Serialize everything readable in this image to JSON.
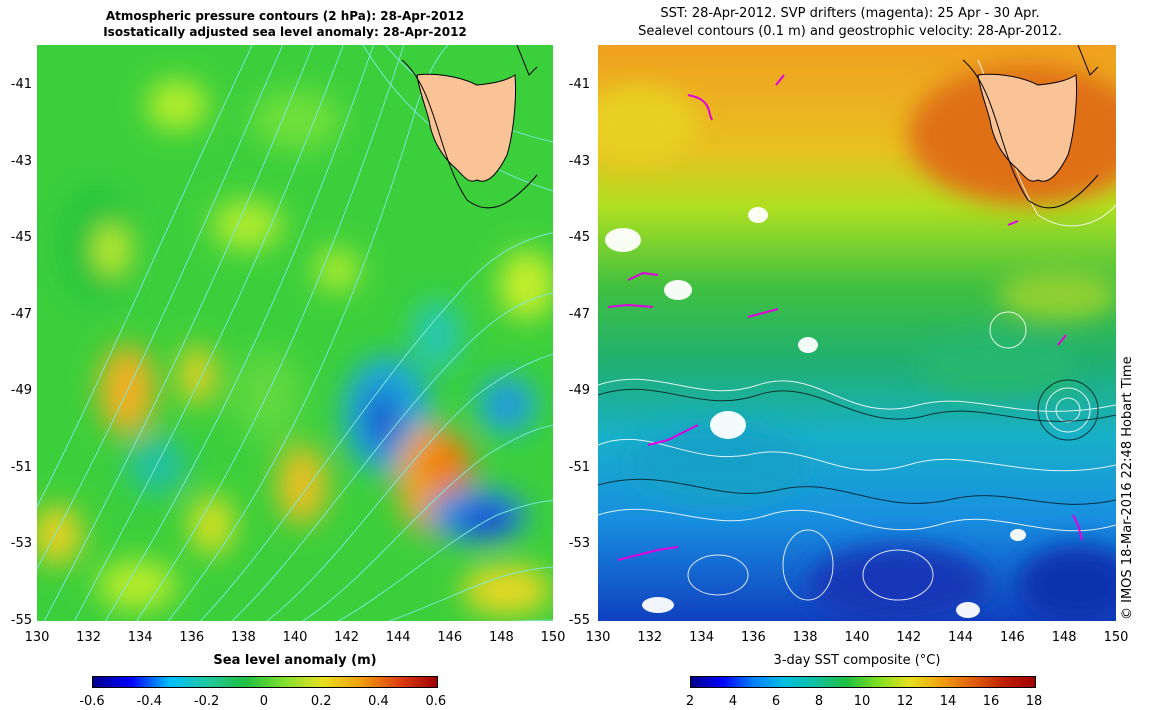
{
  "left_title_line1": "Atmospheric pressure contours (2 hPa): 28-Apr-2012",
  "left_title_line2": "Isostatically adjusted sea level anomaly: 28-Apr-2012",
  "right_title_line1": "SST: 28-Apr-2012. SVP drifters (magenta): 25 Apr - 30 Apr.",
  "right_title_line2": "Sealevel contours (0.1 m) and geostrophic velocity: 28-Apr-2012.",
  "left_xlabel": "Sea level anomaly (m)",
  "right_xlabel": "3-day SST composite (°C)",
  "credit": "© IMOS 18-Mar-2016 22:48 Hobart Time",
  "lat_ticks": [
    "-41",
    "-43",
    "-45",
    "-47",
    "-49",
    "-51",
    "-53",
    "-55"
  ],
  "lon_ticks": [
    "130",
    "132",
    "134",
    "136",
    "138",
    "140",
    "142",
    "144",
    "146",
    "148",
    "150"
  ],
  "left_cb_ticks": [
    "-0.6",
    "-0.4",
    "-0.2",
    "0",
    "0.2",
    "0.4",
    "0.6"
  ],
  "right_cb_ticks": [
    "2",
    "4",
    "6",
    "8",
    "10",
    "12",
    "14",
    "16",
    "18"
  ],
  "colors": {
    "land": "#f9c396",
    "drifter": "#e000e0",
    "contour_left": "#7fe8e0",
    "contour_right": "#ffffff"
  }
}
